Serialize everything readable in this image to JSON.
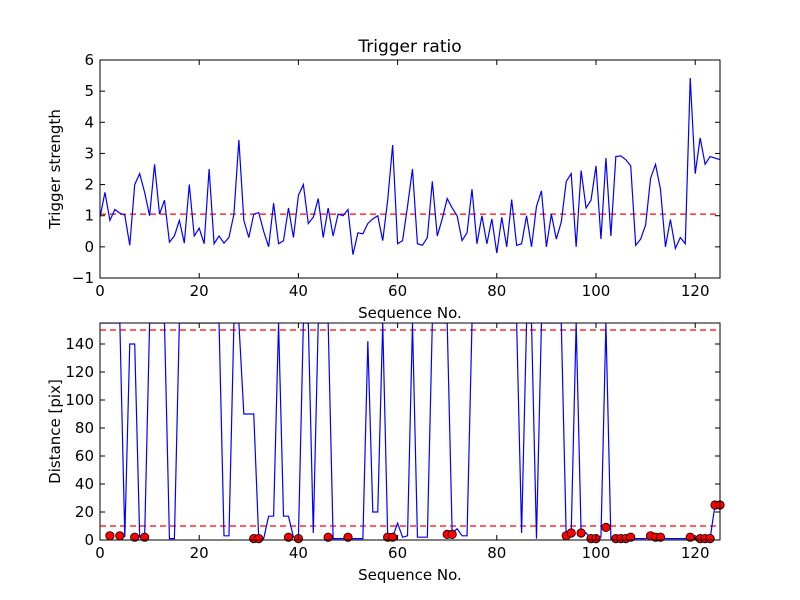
{
  "colors": {
    "line": "#0000ff",
    "threshold": "#ff0000",
    "marker_fill": "#ff0000",
    "axes": "#000000"
  },
  "chart_data": [
    {
      "type": "line",
      "title": "Trigger ratio",
      "xlabel": "Sequence No.",
      "ylabel": "Trigger strength",
      "xlim": [
        0,
        125
      ],
      "ylim": [
        -1,
        6
      ],
      "xticks": [
        0,
        20,
        40,
        60,
        80,
        100,
        120
      ],
      "yticks": [
        -1,
        0,
        1,
        2,
        3,
        4,
        5,
        6
      ],
      "grid": false,
      "threshold": 1.05,
      "series": [
        {
          "values": [
            0.95,
            1.75,
            0.85,
            1.2,
            1.08,
            1.02,
            0.05,
            2.0,
            2.35,
            1.75,
            1.0,
            2.65,
            1.05,
            1.5,
            0.15,
            0.35,
            0.85,
            0.12,
            2.0,
            0.35,
            0.6,
            0.1,
            2.5,
            0.1,
            0.35,
            0.12,
            0.3,
            1.05,
            3.43,
            0.85,
            0.3,
            1.05,
            1.1,
            0.5,
            0.0,
            1.4,
            0.1,
            0.2,
            1.25,
            0.3,
            1.65,
            2.0,
            0.75,
            0.95,
            1.55,
            0.3,
            1.25,
            0.35,
            1.05,
            1.0,
            1.2,
            -0.25,
            0.45,
            0.42,
            0.75,
            0.9,
            1.0,
            0.2,
            1.5,
            3.27,
            0.1,
            0.2,
            1.3,
            2.5,
            0.1,
            0.05,
            0.3,
            2.1,
            0.35,
            0.9,
            1.55,
            1.25,
            1.0,
            0.2,
            0.45,
            1.85,
            0.1,
            1.0,
            0.1,
            0.9,
            -0.2,
            0.95,
            0.0,
            1.52,
            0.05,
            0.1,
            1.0,
            0.0,
            1.3,
            1.8,
            0.0,
            1.05,
            0.25,
            0.8,
            2.1,
            2.35,
            0.0,
            2.45,
            1.25,
            1.5,
            2.6,
            0.25,
            2.85,
            0.35,
            2.9,
            2.92,
            2.8,
            2.6,
            0.05,
            0.25,
            0.7,
            2.2,
            2.65,
            1.85,
            0.0,
            0.88,
            -0.05,
            0.3,
            0.1,
            5.42,
            2.35,
            3.5,
            2.65,
            2.9,
            2.85,
            2.8
          ]
        }
      ]
    },
    {
      "type": "line",
      "title": "",
      "xlabel": "Sequence No.",
      "ylabel": "Distance [pix]",
      "xlim": [
        0,
        125
      ],
      "ylim": [
        0,
        155
      ],
      "xticks": [
        0,
        20,
        40,
        60,
        80,
        100,
        120
      ],
      "yticks": [
        0,
        20,
        40,
        60,
        80,
        100,
        120,
        140
      ],
      "grid": false,
      "thresholds": [
        150,
        10
      ],
      "series": [
        {
          "values": [
            155,
            155,
            155,
            155,
            155,
            2,
            140,
            140,
            2,
            2,
            155,
            155,
            155,
            155,
            1,
            1,
            155,
            155,
            155,
            155,
            155,
            155,
            155,
            155,
            155,
            3,
            3,
            155,
            155,
            90,
            90,
            90,
            1,
            1,
            17,
            17,
            155,
            17,
            17,
            2,
            1,
            155,
            155,
            5,
            155,
            155,
            155,
            1,
            1,
            1,
            1,
            1,
            1,
            1,
            142,
            20,
            20,
            155,
            3,
            2,
            12,
            2,
            3,
            155,
            2,
            2,
            2,
            155,
            155,
            155,
            155,
            5,
            8,
            3,
            3,
            155,
            155,
            155,
            155,
            155,
            155,
            155,
            155,
            155,
            155,
            5,
            155,
            155,
            1,
            155,
            155,
            155,
            155,
            155,
            2,
            5,
            155,
            5,
            5,
            1,
            1,
            2,
            155,
            1,
            1,
            1,
            1,
            1,
            1,
            1,
            1,
            3,
            2,
            2,
            1,
            1,
            1,
            1,
            1,
            1,
            1,
            1,
            1,
            1,
            25,
            25
          ]
        }
      ],
      "markers": {
        "x": [
          2,
          4,
          7,
          9,
          31,
          32,
          38,
          40,
          46,
          50,
          58,
          59,
          70,
          71,
          94,
          95,
          97,
          99,
          100,
          102,
          104,
          105,
          106,
          107,
          111,
          112,
          113,
          119,
          121,
          122,
          123,
          124,
          125
        ],
        "y": [
          3,
          3,
          2,
          2,
          1,
          1,
          2,
          1,
          2,
          2,
          2,
          2,
          4,
          4,
          3,
          5,
          5,
          1,
          1,
          9,
          1,
          1,
          1,
          2,
          3,
          2,
          2,
          2,
          1,
          1,
          1,
          25,
          25
        ]
      }
    }
  ]
}
